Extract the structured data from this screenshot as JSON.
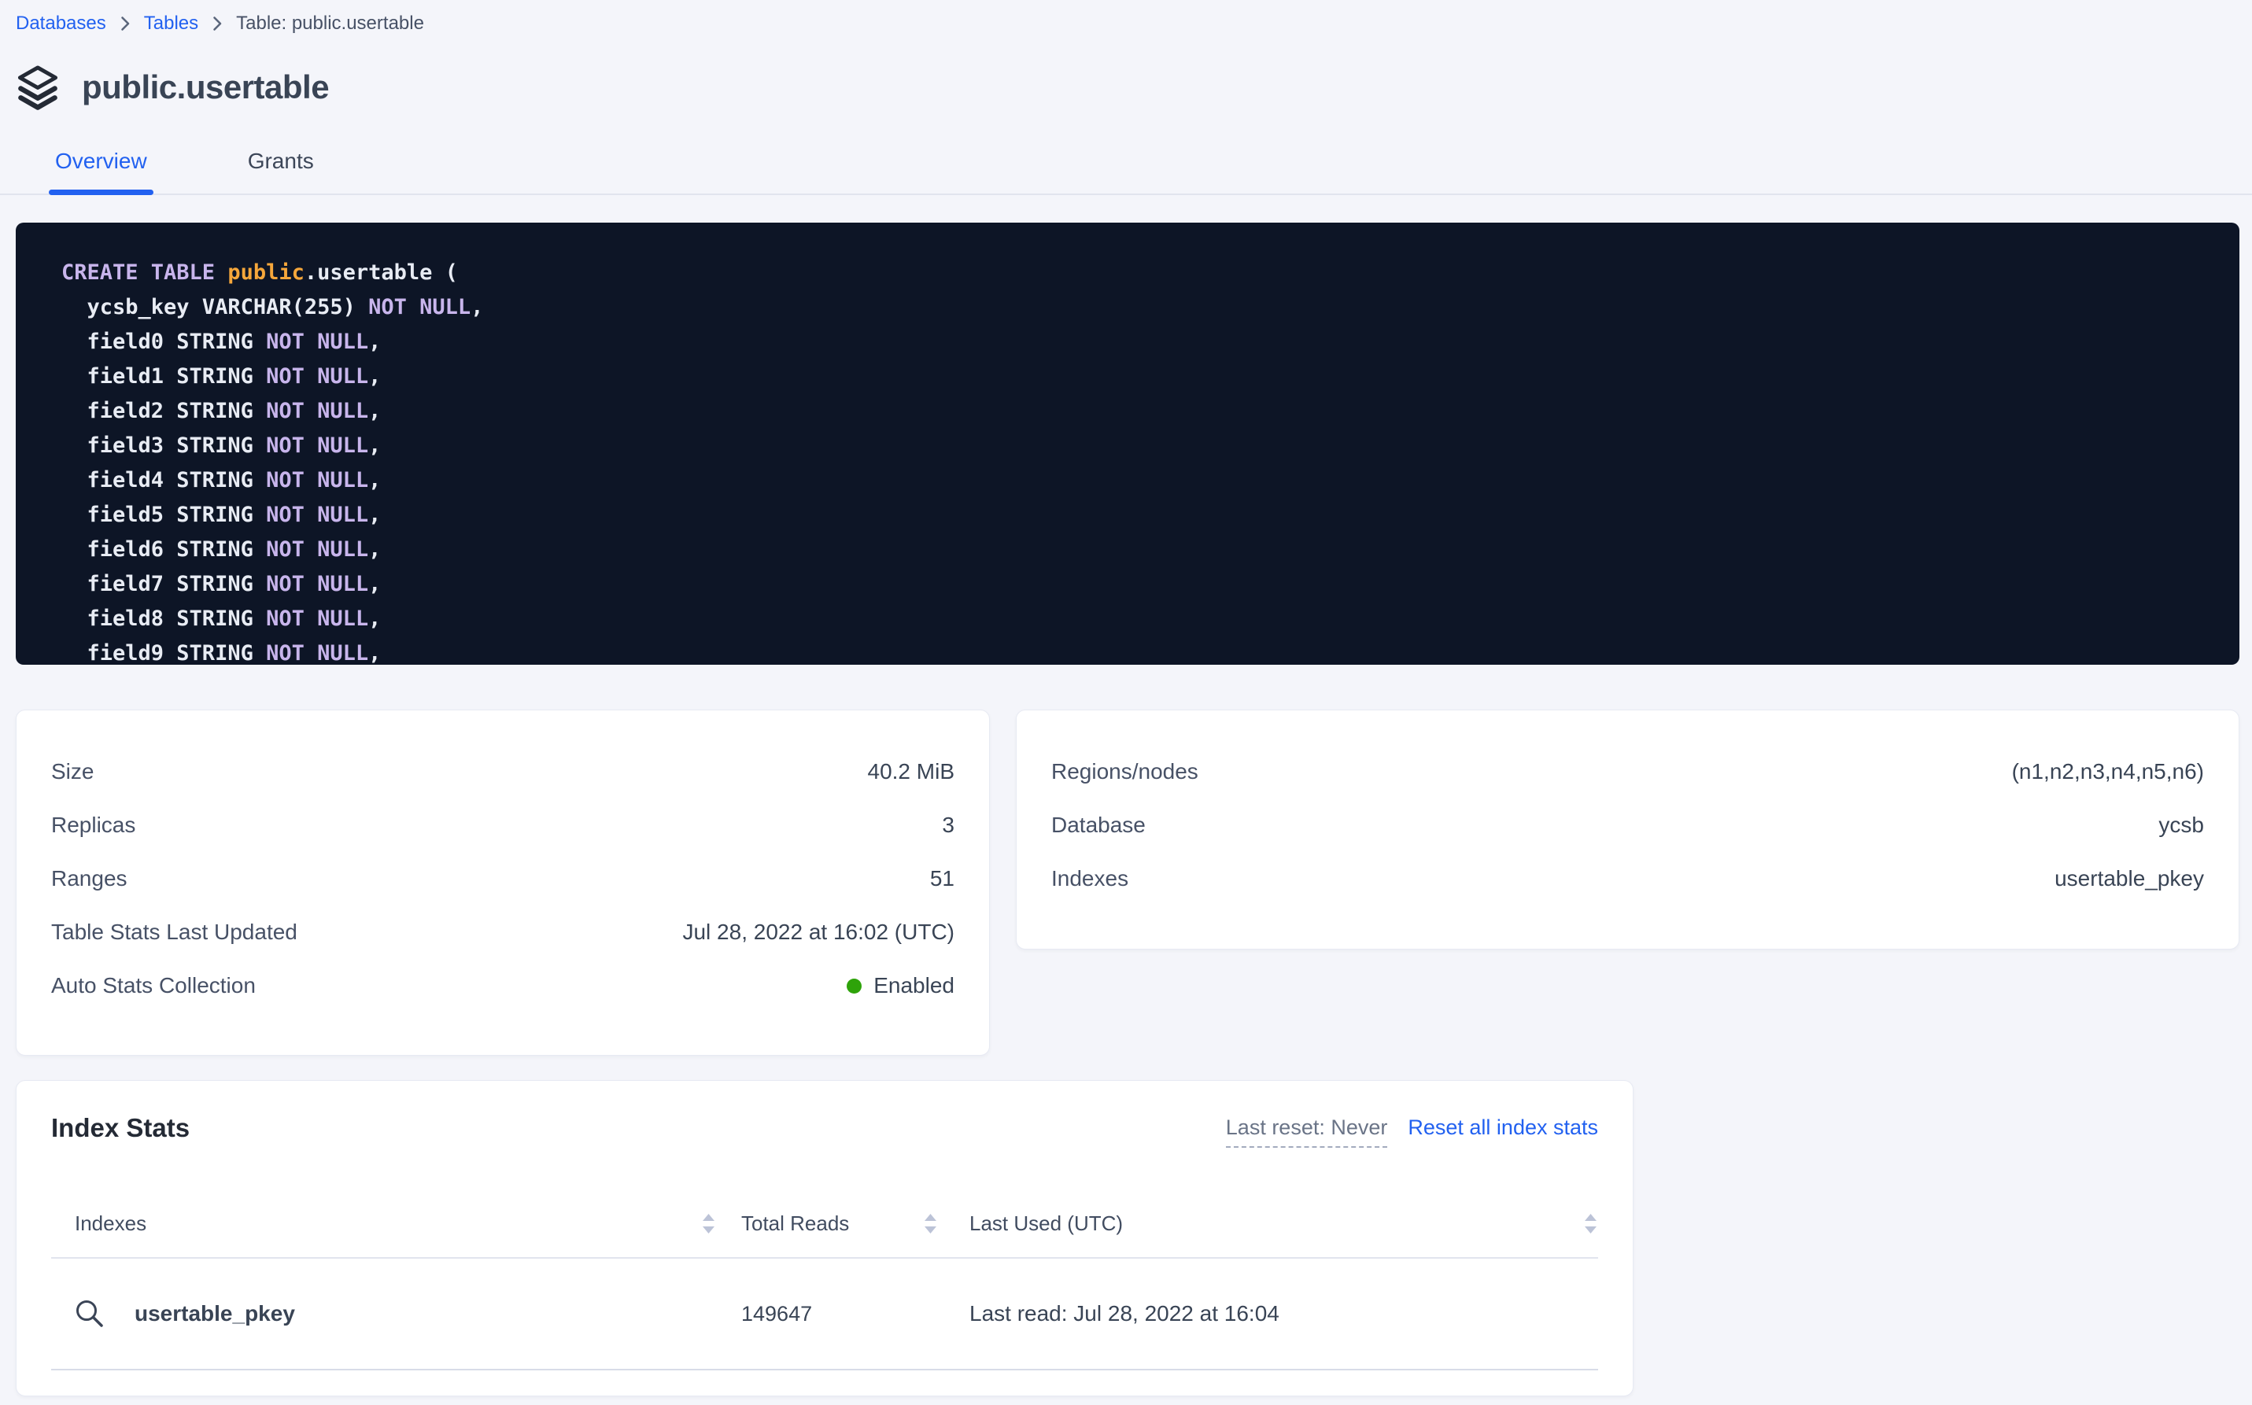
{
  "breadcrumb": {
    "items": [
      {
        "label": "Databases"
      },
      {
        "label": "Tables"
      }
    ],
    "current": "Table: public.usertable"
  },
  "header": {
    "title": "public.usertable",
    "icon": "table-stack-icon"
  },
  "tabs": [
    {
      "label": "Overview",
      "active": true
    },
    {
      "label": "Grants",
      "active": false
    }
  ],
  "sql": {
    "lines": [
      [
        {
          "t": "CREATE TABLE ",
          "c": "kw"
        },
        {
          "t": "public",
          "c": "accent"
        },
        {
          "t": ".usertable (",
          "c": "plain"
        }
      ],
      [
        {
          "t": "  ycsb_key VARCHAR(255) ",
          "c": "plain"
        },
        {
          "t": "NOT NULL",
          "c": "kw"
        },
        {
          "t": ",",
          "c": "plain"
        }
      ],
      [
        {
          "t": "  field0 STRING ",
          "c": "plain"
        },
        {
          "t": "NOT NULL",
          "c": "kw"
        },
        {
          "t": ",",
          "c": "plain"
        }
      ],
      [
        {
          "t": "  field1 STRING ",
          "c": "plain"
        },
        {
          "t": "NOT NULL",
          "c": "kw"
        },
        {
          "t": ",",
          "c": "plain"
        }
      ],
      [
        {
          "t": "  field2 STRING ",
          "c": "plain"
        },
        {
          "t": "NOT NULL",
          "c": "kw"
        },
        {
          "t": ",",
          "c": "plain"
        }
      ],
      [
        {
          "t": "  field3 STRING ",
          "c": "plain"
        },
        {
          "t": "NOT NULL",
          "c": "kw"
        },
        {
          "t": ",",
          "c": "plain"
        }
      ],
      [
        {
          "t": "  field4 STRING ",
          "c": "plain"
        },
        {
          "t": "NOT NULL",
          "c": "kw"
        },
        {
          "t": ",",
          "c": "plain"
        }
      ],
      [
        {
          "t": "  field5 STRING ",
          "c": "plain"
        },
        {
          "t": "NOT NULL",
          "c": "kw"
        },
        {
          "t": ",",
          "c": "plain"
        }
      ],
      [
        {
          "t": "  field6 STRING ",
          "c": "plain"
        },
        {
          "t": "NOT NULL",
          "c": "kw"
        },
        {
          "t": ",",
          "c": "plain"
        }
      ],
      [
        {
          "t": "  field7 STRING ",
          "c": "plain"
        },
        {
          "t": "NOT NULL",
          "c": "kw"
        },
        {
          "t": ",",
          "c": "plain"
        }
      ],
      [
        {
          "t": "  field8 STRING ",
          "c": "plain"
        },
        {
          "t": "NOT NULL",
          "c": "kw"
        },
        {
          "t": ",",
          "c": "plain"
        }
      ],
      [
        {
          "t": "  field9 STRING ",
          "c": "plain"
        },
        {
          "t": "NOT NULL",
          "c": "kw"
        },
        {
          "t": ",",
          "c": "plain"
        }
      ]
    ]
  },
  "details_cards": {
    "left": {
      "rows": [
        {
          "label": "Size",
          "value": "40.2 MiB"
        },
        {
          "label": "Replicas",
          "value": "3"
        },
        {
          "label": "Ranges",
          "value": "51"
        },
        {
          "label": "Table Stats Last Updated",
          "value": "Jul 28, 2022 at 16:02 (UTC)"
        },
        {
          "label": "Auto Stats Collection",
          "value": "Enabled",
          "status_dot": true
        }
      ]
    },
    "right": {
      "rows": [
        {
          "label": "Regions/nodes",
          "value": "(n1,n2,n3,n4,n5,n6)"
        },
        {
          "label": "Database",
          "value": "ycsb"
        },
        {
          "label": "Indexes",
          "value": "usertable_pkey"
        }
      ]
    }
  },
  "index_stats": {
    "title": "Index Stats",
    "last_reset_label": "Last reset: Never",
    "reset_link": "Reset all index stats",
    "columns": [
      "Indexes",
      "Total Reads",
      "Last Used (UTC)"
    ],
    "rows": [
      {
        "name": "usertable_pkey",
        "total_reads": "149647",
        "last_used": "Last read: Jul 28, 2022 at 16:04"
      }
    ]
  },
  "icons": {
    "title": "table-stack-icon",
    "breadcrumb_separator": "chevron-right-icon",
    "row": "search-icon",
    "sort": "sort-arrows-icon",
    "status": "green-dot"
  },
  "colors": {
    "page_bg": "#f4f5fa",
    "accent_blue": "#2261f0",
    "status_green": "#2ea30a",
    "code_bg": "#0d1526",
    "code_keyword": "#c8b5ec",
    "code_accent": "#f6a73b",
    "code_text": "#e8ecf4",
    "text_primary": "#394455",
    "text_secondary": "#475166"
  }
}
